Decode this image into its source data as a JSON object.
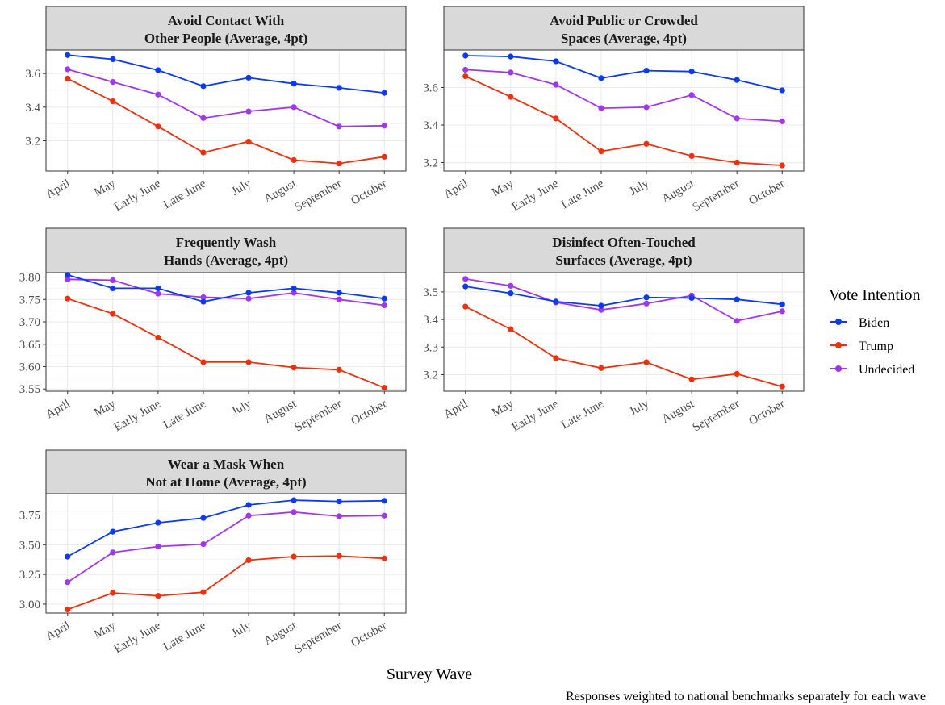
{
  "chart_data": {
    "type": "line",
    "x_title": "Survey Wave",
    "caption": "Responses weighted to national benchmarks separately for each wave",
    "categories": [
      "April",
      "May",
      "Early June",
      "Late June",
      "July",
      "August",
      "September",
      "October"
    ],
    "legend": {
      "title": "Vote Intention",
      "placement": "right",
      "entries": [
        {
          "key": "biden",
          "label": "Biden",
          "color": "#0b3af5"
        },
        {
          "key": "trump",
          "label": "Trump",
          "color": "#f0300c"
        },
        {
          "key": "undecided",
          "label": "Undecided",
          "color": "#a236f0"
        }
      ]
    },
    "grid": true,
    "panels": [
      {
        "title_line1": "Avoid Contact With",
        "title_line2": "Other People (Average, 4pt)",
        "ylim": [
          3.02,
          3.74
        ],
        "yticks": [
          "3.2",
          "3.4",
          "3.6"
        ],
        "ytick_values": [
          3.2,
          3.4,
          3.6
        ],
        "series": {
          "biden": [
            3.71,
            3.685,
            3.62,
            3.525,
            3.575,
            3.54,
            3.515,
            3.485
          ],
          "trump": [
            3.57,
            3.435,
            3.285,
            3.13,
            3.195,
            3.085,
            3.065,
            3.105
          ],
          "undecided": [
            3.625,
            3.55,
            3.475,
            3.335,
            3.375,
            3.4,
            3.285,
            3.29
          ]
        }
      },
      {
        "title_line1": "Avoid Public or Crowded",
        "title_line2": "Spaces (Average, 4pt)",
        "ylim": [
          3.155,
          3.8
        ],
        "yticks": [
          "3.2",
          "3.4",
          "3.6"
        ],
        "ytick_values": [
          3.2,
          3.4,
          3.6
        ],
        "series": {
          "biden": [
            3.77,
            3.765,
            3.74,
            3.65,
            3.69,
            3.685,
            3.64,
            3.585
          ],
          "trump": [
            3.66,
            3.55,
            3.435,
            3.26,
            3.3,
            3.235,
            3.2,
            3.185
          ],
          "undecided": [
            3.695,
            3.68,
            3.615,
            3.49,
            3.495,
            3.56,
            3.435,
            3.42
          ]
        }
      },
      {
        "title_line1": "Frequently Wash",
        "title_line2": "Hands (Average, 4pt)",
        "ylim": [
          3.545,
          3.81
        ],
        "yticks": [
          "3.55",
          "3.60",
          "3.65",
          "3.70",
          "3.75",
          "3.80"
        ],
        "ytick_values": [
          3.55,
          3.6,
          3.65,
          3.7,
          3.75,
          3.8
        ],
        "series": {
          "biden": [
            3.805,
            3.775,
            3.775,
            3.745,
            3.765,
            3.775,
            3.765,
            3.752
          ],
          "trump": [
            3.752,
            3.718,
            3.665,
            3.61,
            3.61,
            3.598,
            3.593,
            3.553
          ],
          "undecided": [
            3.795,
            3.793,
            3.763,
            3.755,
            3.752,
            3.765,
            3.75,
            3.737
          ]
        }
      },
      {
        "title_line1": "Disinfect Often-Touched",
        "title_line2": "Surfaces (Average, 4pt)",
        "ylim": [
          3.14,
          3.57
        ],
        "yticks": [
          "3.2",
          "3.3",
          "3.4",
          "3.5"
        ],
        "ytick_values": [
          3.2,
          3.3,
          3.4,
          3.5
        ],
        "series": {
          "biden": [
            3.52,
            3.495,
            3.465,
            3.45,
            3.48,
            3.478,
            3.473,
            3.455
          ],
          "trump": [
            3.447,
            3.365,
            3.26,
            3.224,
            3.245,
            3.183,
            3.203,
            3.157
          ],
          "undecided": [
            3.547,
            3.522,
            3.462,
            3.435,
            3.458,
            3.487,
            3.395,
            3.43
          ]
        }
      },
      {
        "title_line1": "Wear a Mask When",
        "title_line2": "Not at Home (Average, 4pt)",
        "ylim": [
          2.925,
          3.93
        ],
        "yticks": [
          "3.00",
          "3.25",
          "3.50",
          "3.75"
        ],
        "ytick_values": [
          3.0,
          3.25,
          3.5,
          3.75
        ],
        "series": {
          "biden": [
            3.4,
            3.61,
            3.685,
            3.725,
            3.835,
            3.875,
            3.865,
            3.87
          ],
          "trump": [
            2.955,
            3.095,
            3.07,
            3.1,
            3.37,
            3.4,
            3.405,
            3.385
          ],
          "undecided": [
            3.185,
            3.435,
            3.485,
            3.505,
            3.745,
            3.775,
            3.74,
            3.745
          ]
        }
      }
    ]
  }
}
